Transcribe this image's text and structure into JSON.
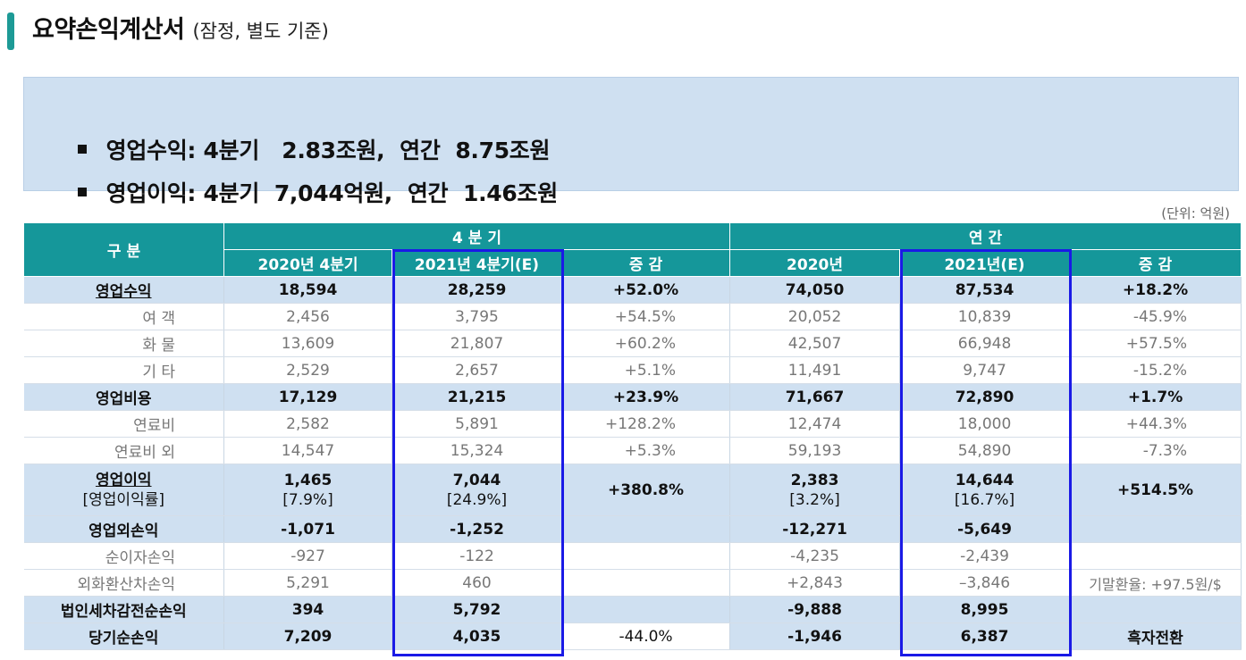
{
  "title": {
    "main": "요약손익계산서",
    "sub": "(잠정, 별도 기준)"
  },
  "summary": [
    {
      "label": "영업수익:",
      "text": " 4분기   2.83조원,  연간  8.75조원"
    },
    {
      "label": "영업이익:",
      "text": " 4분기  7,044억원,  연간  1.46조원"
    }
  ],
  "unit": "(단위: 억원)",
  "table": {
    "header": {
      "category": "구   분",
      "quarter_group": "4 분 기",
      "annual_group": "연   간",
      "cols": [
        "2020년 4분기",
        "2021년 4분기(E)",
        "증  감",
        "2020년",
        "2021년(E)",
        "증  감"
      ]
    },
    "rows": [
      {
        "type": "major",
        "label": "영업수익",
        "underline": true,
        "v": [
          "18,594",
          "28,259",
          "+52.0%",
          "74,050",
          "87,534",
          "+18.2%"
        ]
      },
      {
        "type": "minor",
        "label": "여   객",
        "v": [
          "2,456",
          "3,795",
          "+54.5%",
          "20,052",
          "10,839",
          "-45.9%"
        ]
      },
      {
        "type": "minor",
        "label": "화   물",
        "v": [
          "13,609",
          "21,807",
          "+60.2%",
          "42,507",
          "66,948",
          "+57.5%"
        ]
      },
      {
        "type": "minor",
        "label": "기   타",
        "v": [
          "2,529",
          "2,657",
          "+5.1%",
          "11,491",
          "9,747",
          "-15.2%"
        ]
      },
      {
        "type": "major",
        "label": "영업비용",
        "v": [
          "17,129",
          "21,215",
          "+23.9%",
          "71,667",
          "72,890",
          "+1.7%"
        ]
      },
      {
        "type": "minor",
        "label": "연료비",
        "v": [
          "2,582",
          "5,891",
          "+128.2%",
          "12,474",
          "18,000",
          "+44.3%"
        ]
      },
      {
        "type": "minor",
        "label": "연료비 외",
        "v": [
          "14,547",
          "15,324",
          "+5.3%",
          "59,193",
          "54,890",
          "-7.3%"
        ]
      },
      {
        "type": "major-tall",
        "label": "영업이익",
        "label2": "[영업이익률]",
        "v": [
          "1,465",
          "7,044",
          "+380.8%",
          "2,383",
          "14,644",
          "+514.5%"
        ],
        "v2": [
          "[7.9%]",
          "[24.9%]",
          "",
          "[3.2%]",
          "[16.7%]",
          ""
        ]
      },
      {
        "type": "major",
        "label": "영업외손익",
        "v": [
          "-1,071",
          "-1,252",
          "",
          "-12,271",
          "-5,649",
          ""
        ]
      },
      {
        "type": "minor",
        "label": "순이자손익",
        "v": [
          "-927",
          "-122",
          "",
          "-4,235",
          "-2,439",
          ""
        ]
      },
      {
        "type": "minor",
        "label": "외화환산차손익",
        "v": [
          "5,291",
          "460",
          "",
          "+2,843",
          "–3,846",
          "기말환율: +97.5원/$"
        ]
      },
      {
        "type": "major",
        "label": "법인세차감전순손익",
        "v": [
          "394",
          "5,792",
          "",
          "-9,888",
          "8,995",
          ""
        ]
      },
      {
        "type": "major",
        "label": "당기순손익",
        "v": [
          "7,209",
          "4,035",
          "-44.0%",
          "-1,946",
          "6,387",
          "흑자전환"
        ]
      }
    ]
  },
  "colors": {
    "header": "#15979a",
    "highlight_row": "#cfe0f1",
    "highlight_box": "#1a1ae6",
    "accent_bar": "#1d9a96"
  }
}
